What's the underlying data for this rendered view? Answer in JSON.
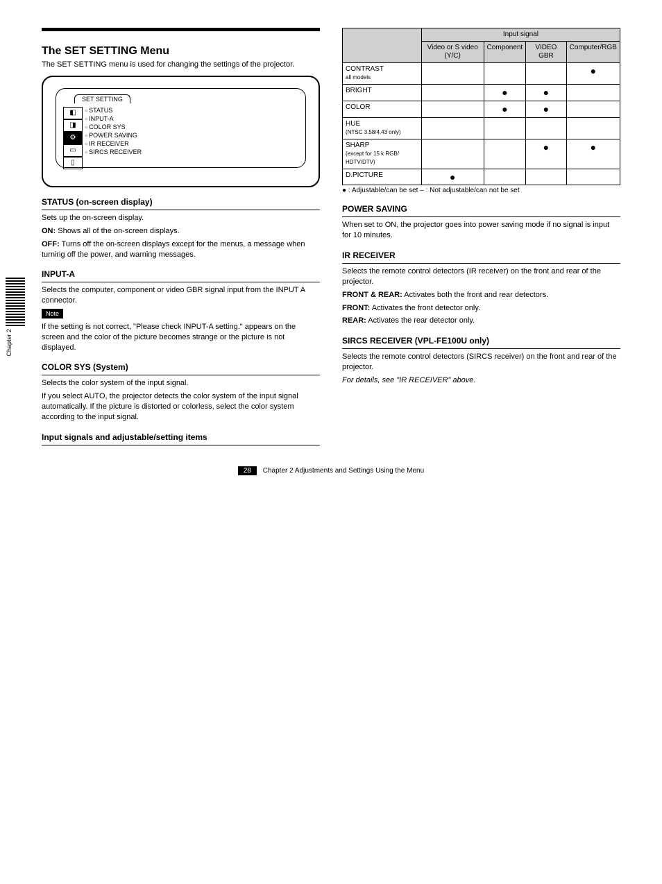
{
  "section": {
    "title": "The SET SETTING Menu",
    "intro": "The SET SETTING menu is used for changing the settings of the projector."
  },
  "screen": {
    "tab": "SET SETTING",
    "items": [
      "STATUS",
      "INPUT-A",
      "COLOR SYS",
      "POWER SAVING",
      "IR RECEIVER",
      "SIRCS RECEIVER"
    ],
    "icons": [
      "◧",
      "◨",
      "⚙",
      "▭",
      "▯"
    ],
    "values_label": ""
  },
  "items": {
    "status": {
      "title": "STATUS (on-screen display)",
      "body": "Sets up the on-screen display.",
      "on": "Shows all of the on-screen displays.",
      "off": "Turns off the on-screen displays except for the menus, a message when turning off the power, and warning messages."
    },
    "inputa": {
      "title": "INPUT-A",
      "body": "Selects the computer, component or video GBR signal input from the INPUT A connector.",
      "note_label": "Note",
      "note": "If the setting is not correct, \"Please check INPUT-A setting.\" appears on the screen and the color of the picture becomes strange or the picture is not displayed."
    },
    "colorsys": {
      "title": "COLOR SYS (System)",
      "body": "Selects the color system of the input signal.",
      "body2": "If you select AUTO, the projector detects the color system of the input signal automatically. If the picture is distorted or colorless, select the color system according to the input signal."
    },
    "powersave": {
      "title": "POWER SAVING",
      "body": "When set to ON, the projector goes into power saving mode if no signal is input for 10 minutes."
    },
    "irrec": {
      "title": "IR RECEIVER",
      "body": "Selects the remote control detectors (IR receiver) on the front and rear of the projector.",
      "frontrear": "Activates both the front and rear detectors.",
      "front": "Activates the front detector only.",
      "rear": "Activates the rear detector only."
    },
    "sircs": {
      "title": "SIRCS RECEIVER (VPL-FE100U only)",
      "body": "Selects the remote control detectors (SIRCS receiver) on the front and rear of the projector.",
      "page_ref": "For details, see \"IR RECEIVER\" above."
    }
  },
  "table": {
    "caption": "Input signal",
    "cols": [
      "Video or S video (Y/C)",
      "Component",
      "VIDEO GBR",
      "Computer/RGB"
    ],
    "rows": [
      {
        "label": "CONTRAST",
        "sub": "all models",
        "cells": [
          "",
          "",
          "",
          "●"
        ]
      },
      {
        "label": "BRIGHT",
        "sub": "",
        "cells": [
          "",
          "●",
          "●",
          ""
        ]
      },
      {
        "label": "COLOR",
        "sub": "",
        "cells": [
          "",
          "●",
          "●",
          ""
        ]
      },
      {
        "label": "HUE",
        "sub": "(NTSC 3.58/4.43 only)",
        "cells": [
          "",
          "",
          "",
          ""
        ]
      },
      {
        "label": "SHARP",
        "sub": "(except for 15 k RGB/ HDTV/DTV)",
        "cells": [
          "",
          "",
          "●",
          "●"
        ]
      },
      {
        "label": "D.PICTURE",
        "sub": "",
        "cells": [
          "●",
          "",
          "",
          ""
        ]
      }
    ],
    "note": "● : Adjustable/can be set   – : Not adjustable/can not be set"
  },
  "relation": {
    "title": "Input signals and adjustable/setting items"
  },
  "footer": {
    "page": "28",
    "chapter": "Chapter 2   Adjustments and Settings Using the Menu"
  },
  "side_label": "Chapter 2",
  "labels": {
    "on": "ON:",
    "off": "OFF:",
    "frontrear": "FRONT & REAR:",
    "front": "FRONT:",
    "rear": "REAR:"
  }
}
